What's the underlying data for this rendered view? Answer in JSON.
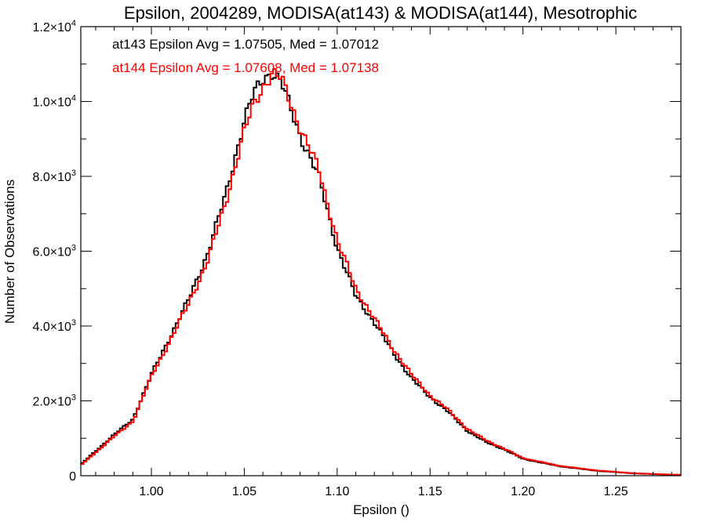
{
  "chart_data": {
    "type": "line",
    "title": "Epsilon, 2004289, MODISA(at143) & MODISA(at144), Mesotrophic",
    "xlabel": "Epsilon ()",
    "ylabel": "Number of Observations",
    "xlim": [
      0.962,
      1.285
    ],
    "ylim": [
      0,
      12000
    ],
    "x_ticks": [
      {
        "value": 1.0,
        "label": "1.00"
      },
      {
        "value": 1.05,
        "label": "1.05"
      },
      {
        "value": 1.1,
        "label": "1.10"
      },
      {
        "value": 1.15,
        "label": "1.15"
      },
      {
        "value": 1.2,
        "label": "1.20"
      },
      {
        "value": 1.25,
        "label": "1.25"
      }
    ],
    "y_ticks": [
      {
        "value": 0,
        "mantissa": "0",
        "exponent": ""
      },
      {
        "value": 2000,
        "mantissa": "2.0×10",
        "exponent": "3"
      },
      {
        "value": 4000,
        "mantissa": "4.0×10",
        "exponent": "3"
      },
      {
        "value": 6000,
        "mantissa": "6.0×10",
        "exponent": "3"
      },
      {
        "value": 8000,
        "mantissa": "8.0×10",
        "exponent": "3"
      },
      {
        "value": 10000,
        "mantissa": "1.0×10",
        "exponent": "4"
      },
      {
        "value": 12000,
        "mantissa": "1.2×10",
        "exponent": "4"
      }
    ],
    "grid": false,
    "legend_placement": "top-left",
    "annotations": [
      {
        "text": "at143 Epsilon Avg = 1.07505, Med = 1.07012",
        "color": "#000000"
      },
      {
        "text": "at144 Epsilon Avg = 1.07608, Med = 1.07138",
        "color": "#ff0000"
      }
    ],
    "series": [
      {
        "color": "#000000",
        "x": [
          0.962,
          0.98,
          0.99,
          1.0,
          1.01,
          1.02,
          1.03,
          1.04,
          1.05,
          1.055,
          1.06,
          1.065,
          1.07,
          1.08,
          1.09,
          1.1,
          1.11,
          1.12,
          1.13,
          1.14,
          1.15,
          1.16,
          1.17,
          1.18,
          1.19,
          1.2,
          1.22,
          1.24,
          1.26,
          1.285
        ],
        "y": [
          300,
          1100,
          1500,
          2700,
          3700,
          4700,
          5900,
          7500,
          9500,
          10200,
          10600,
          10800,
          10500,
          9100,
          8000,
          6100,
          4800,
          4100,
          3300,
          2600,
          2100,
          1700,
          1200,
          900,
          700,
          450,
          250,
          130,
          60,
          20
        ]
      },
      {
        "color": "#ff0000",
        "x": [
          0.962,
          0.98,
          0.99,
          1.0,
          1.01,
          1.02,
          1.03,
          1.04,
          1.05,
          1.055,
          1.06,
          1.065,
          1.07,
          1.08,
          1.09,
          1.1,
          1.11,
          1.12,
          1.13,
          1.14,
          1.15,
          1.16,
          1.17,
          1.18,
          1.19,
          1.2,
          1.22,
          1.24,
          1.26,
          1.285
        ],
        "y": [
          280,
          1050,
          1450,
          2650,
          3600,
          4600,
          5700,
          7300,
          9200,
          9900,
          10400,
          10750,
          10600,
          9300,
          8200,
          6300,
          5000,
          4200,
          3400,
          2700,
          2150,
          1750,
          1250,
          950,
          720,
          470,
          260,
          140,
          65,
          20
        ]
      }
    ]
  }
}
